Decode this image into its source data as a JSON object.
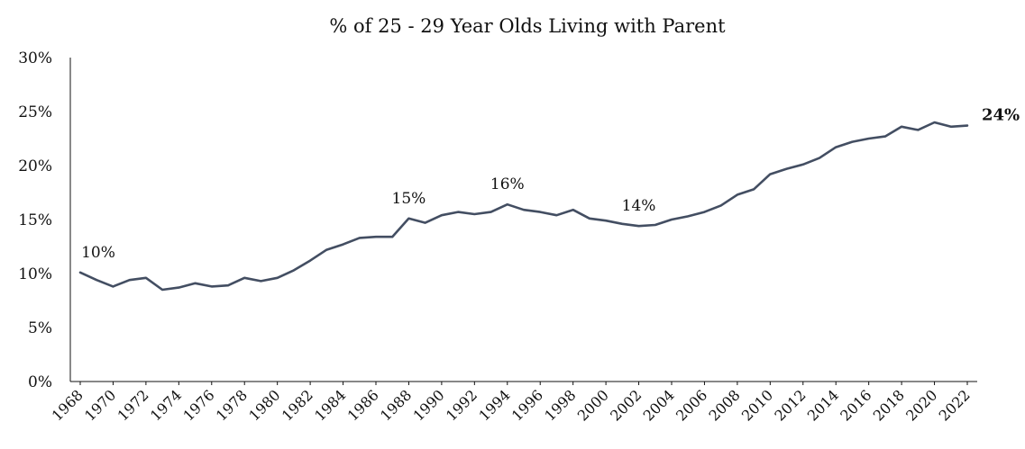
{
  "chart_data": {
    "type": "line",
    "title": "% of 25 - 29 Year Olds Living with Parent",
    "xlabel": "",
    "ylabel": "",
    "ylim": [
      0,
      30
    ],
    "y_ticks": [
      "0%",
      "5%",
      "10%",
      "15%",
      "20%",
      "25%",
      "30%"
    ],
    "x_ticks": [
      "1968",
      "1970",
      "1972",
      "1974",
      "1976",
      "1978",
      "1980",
      "1982",
      "1984",
      "1986",
      "1988",
      "1990",
      "1992",
      "1994",
      "1996",
      "1998",
      "2000",
      "2002",
      "2004",
      "2006",
      "2008",
      "2010",
      "2012",
      "2014",
      "2016",
      "2018",
      "2020",
      "2022"
    ],
    "grid": false,
    "line_color": "#434e62",
    "series": [
      {
        "x": [
          1968,
          1969,
          1970,
          1971,
          1972,
          1973,
          1974,
          1975,
          1976,
          1977,
          1978,
          1979,
          1980,
          1981,
          1982,
          1983,
          1984,
          1985,
          1986,
          1987,
          1988,
          1989,
          1990,
          1991,
          1992,
          1993,
          1994,
          1995,
          1996,
          1997,
          1998,
          1999,
          2000,
          2001,
          2002,
          2003,
          2004,
          2005,
          2006,
          2007,
          2008,
          2009,
          2010,
          2011,
          2012,
          2013,
          2014,
          2015,
          2016,
          2017,
          2018,
          2019,
          2020,
          2021,
          2022
        ],
        "values": [
          10.1,
          9.4,
          8.8,
          9.4,
          9.6,
          8.5,
          8.7,
          9.1,
          8.8,
          8.9,
          9.6,
          9.3,
          9.6,
          10.3,
          11.2,
          12.2,
          12.7,
          13.3,
          13.4,
          13.4,
          15.1,
          14.7,
          15.4,
          15.7,
          15.5,
          15.7,
          16.4,
          15.9,
          15.7,
          15.4,
          15.9,
          15.1,
          14.9,
          14.6,
          14.4,
          14.5,
          15.0,
          15.3,
          15.7,
          16.3,
          17.3,
          17.8,
          19.2,
          19.7,
          20.1,
          20.7,
          21.7,
          22.2,
          22.5,
          22.7,
          23.6,
          23.3,
          24.0,
          23.6,
          23.7
        ]
      }
    ],
    "annotations": [
      {
        "text": "10%",
        "x": 1968,
        "y": 10.1,
        "bold": false
      },
      {
        "text": "15%",
        "x": 1988,
        "y": 15.1,
        "bold": false
      },
      {
        "text": "16%",
        "x": 1994,
        "y": 16.4,
        "bold": false
      },
      {
        "text": "14%",
        "x": 2002,
        "y": 14.4,
        "bold": false
      },
      {
        "text": "24%",
        "x": 2022,
        "y": 23.7,
        "bold": true
      }
    ]
  }
}
